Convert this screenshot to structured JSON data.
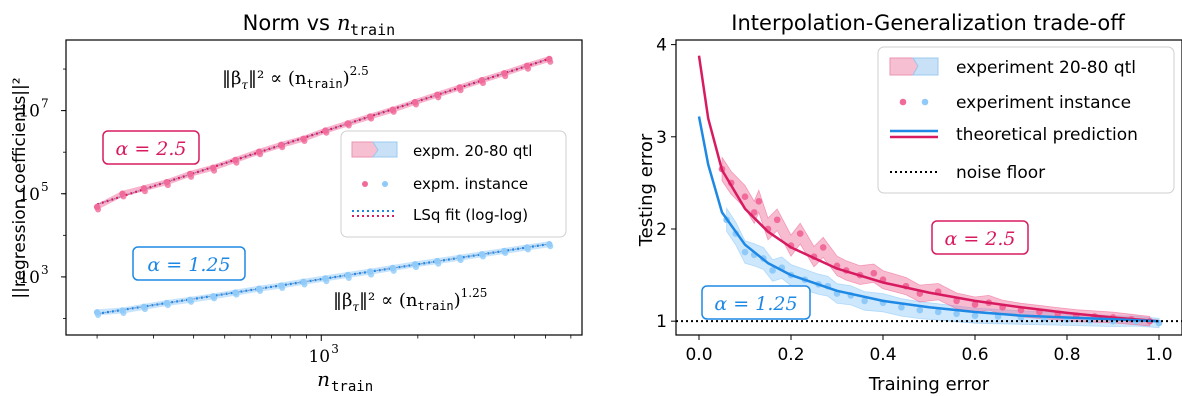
{
  "colors": {
    "pink": "#d81b60",
    "pink_light": "#f06a9a",
    "blue": "#1e88e5",
    "blue_light": "#90caf9",
    "frame": "#000000"
  },
  "chart_data": [
    {
      "type": "scatter",
      "title": "Norm vs",
      "title_var": "n",
      "title_sub": "train",
      "xlabel_var": "n",
      "xlabel_sub": "train",
      "ylabel": "||regression coefficients||²",
      "xscale": "log",
      "yscale": "log",
      "xlim": [
        160,
        6500
      ],
      "ylim": [
        40,
        500000000
      ],
      "xticks": [
        {
          "label_base": "10",
          "label_exp": "3",
          "value": 1000
        }
      ],
      "yticks": [
        {
          "label_base": "10",
          "label_exp": "3",
          "value": 1000
        },
        {
          "label_base": "10",
          "label_exp": "5",
          "value": 100000
        },
        {
          "label_base": "10",
          "label_exp": "7",
          "value": 10000000
        }
      ],
      "grid": false,
      "legend": {
        "position": "center-right",
        "entries": [
          "expm. 20-80 qtl",
          "expm. instance",
          "LSq fit (log-log)"
        ]
      },
      "annotations": [
        {
          "text": "α = 2.5",
          "color": "pink"
        },
        {
          "text": "α = 1.25",
          "color": "blue"
        },
        {
          "pre": "‖β",
          "sub": "τ",
          "post": "‖² ∝ (n",
          "sub2": "train",
          "post2": ")",
          "sup": "2.5"
        },
        {
          "pre": "‖β",
          "sub": "τ",
          "post": "‖² ∝ (n",
          "sub2": "train",
          "post2": ")",
          "sup": "1.25"
        }
      ],
      "series": [
        {
          "color": "pink",
          "x": [
            200,
            240,
            280,
            330,
            390,
            460,
            540,
            640,
            750,
            880,
            1030,
            1210,
            1420,
            1670,
            1960,
            2300,
            2700,
            3170,
            3720,
            4380,
            5140
          ],
          "y": [
            48000,
            100000,
            135000,
            190000,
            300000,
            420000,
            650000,
            1030000,
            1500000,
            2100000,
            3300000,
            4900000,
            7200000,
            10500000,
            16000000,
            24000000,
            36000000,
            54000000,
            79000000,
            120000000,
            175000000
          ]
        },
        {
          "color": "blue",
          "x": [
            200,
            240,
            280,
            330,
            390,
            460,
            540,
            640,
            750,
            880,
            1030,
            1210,
            1420,
            1670,
            1960,
            2300,
            2700,
            3170,
            3720,
            4380,
            5140
          ],
          "y": [
            140,
            155,
            190,
            235,
            280,
            340,
            420,
            520,
            620,
            760,
            920,
            1110,
            1340,
            1640,
            2000,
            2400,
            2900,
            3500,
            4200,
            5100,
            6100
          ]
        }
      ]
    },
    {
      "type": "line",
      "title": "Interpolation-Generalization trade-off",
      "xlabel": "Training error",
      "ylabel": "Testing error",
      "xlim": [
        -0.05,
        1.05
      ],
      "ylim": [
        0.85,
        4.05
      ],
      "xticks": [
        "0.0",
        "0.2",
        "0.4",
        "0.6",
        "0.8",
        "1.0"
      ],
      "yticks": [
        "1",
        "2",
        "3",
        "4"
      ],
      "grid": false,
      "noise_floor": 1.0,
      "legend": {
        "position": "top-right",
        "entries": [
          "experiment 20-80 qtl",
          "experiment instance",
          "theoretical prediction",
          "noise floor"
        ]
      },
      "annotations": [
        {
          "text": "α = 2.5",
          "color": "pink"
        },
        {
          "text": "α = 1.25",
          "color": "blue"
        }
      ],
      "series": [
        {
          "color": "pink",
          "theory_x": [
            0.0,
            0.02,
            0.05,
            0.1,
            0.15,
            0.2,
            0.3,
            0.4,
            0.5,
            0.6,
            0.7,
            0.8,
            0.9,
            1.0
          ],
          "theory_y": [
            3.88,
            3.2,
            2.64,
            2.22,
            1.97,
            1.8,
            1.57,
            1.42,
            1.31,
            1.22,
            1.15,
            1.09,
            1.04,
            1.0
          ],
          "points_x": [
            0.05,
            0.07,
            0.1,
            0.12,
            0.13,
            0.15,
            0.17,
            0.2,
            0.22,
            0.25,
            0.27,
            0.3,
            0.32,
            0.35,
            0.38,
            0.4,
            0.45,
            0.48,
            0.52,
            0.56,
            0.6,
            0.63,
            0.66,
            0.7,
            0.74,
            0.78,
            0.82,
            0.86,
            0.9,
            0.94,
            0.98
          ],
          "points_y": [
            2.65,
            2.5,
            2.35,
            2.18,
            2.3,
            2.0,
            2.1,
            1.82,
            1.95,
            1.7,
            1.8,
            1.6,
            1.55,
            1.5,
            1.52,
            1.45,
            1.38,
            1.3,
            1.32,
            1.22,
            1.18,
            1.2,
            1.15,
            1.12,
            1.1,
            1.08,
            1.06,
            1.05,
            1.04,
            1.02,
            1.0
          ]
        },
        {
          "color": "blue",
          "theory_x": [
            0.0,
            0.02,
            0.05,
            0.1,
            0.15,
            0.2,
            0.3,
            0.4,
            0.5,
            0.6,
            0.7,
            0.8,
            0.9,
            1.0
          ],
          "theory_y": [
            3.22,
            2.7,
            2.18,
            1.83,
            1.63,
            1.5,
            1.33,
            1.22,
            1.15,
            1.1,
            1.06,
            1.04,
            1.02,
            1.0
          ],
          "points_x": [
            0.06,
            0.08,
            0.1,
            0.12,
            0.14,
            0.16,
            0.18,
            0.2,
            0.23,
            0.26,
            0.28,
            0.3,
            0.33,
            0.36,
            0.4,
            0.44,
            0.48,
            0.52,
            0.56,
            0.6,
            0.65,
            0.7,
            0.75,
            0.8,
            0.85,
            0.9,
            0.95,
            1.0
          ],
          "points_y": [
            2.1,
            1.95,
            1.75,
            1.72,
            1.68,
            1.55,
            1.58,
            1.5,
            1.45,
            1.4,
            1.38,
            1.3,
            1.28,
            1.22,
            1.2,
            1.15,
            1.12,
            1.1,
            1.08,
            1.06,
            1.05,
            1.04,
            1.03,
            1.02,
            1.01,
            1.0,
            1.0,
            0.98
          ]
        }
      ]
    }
  ]
}
